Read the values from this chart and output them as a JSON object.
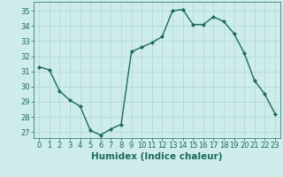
{
  "x": [
    0,
    1,
    2,
    3,
    4,
    5,
    6,
    7,
    8,
    9,
    10,
    11,
    12,
    13,
    14,
    15,
    16,
    17,
    18,
    19,
    20,
    21,
    22,
    23
  ],
  "y": [
    31.3,
    31.1,
    29.7,
    29.1,
    28.7,
    27.1,
    26.8,
    27.2,
    27.5,
    32.3,
    32.6,
    32.9,
    33.3,
    35.0,
    35.1,
    34.1,
    34.1,
    34.6,
    34.3,
    33.5,
    32.2,
    30.4,
    29.5,
    28.2
  ],
  "line_color": "#1a6b5e",
  "marker": "D",
  "marker_size": 2.0,
  "bg_color": "#ceecea",
  "grid_color": "#aed8d4",
  "xlabel": "Humidex (Indice chaleur)",
  "ylim": [
    26.6,
    35.6
  ],
  "xlim": [
    -0.5,
    23.5
  ],
  "yticks": [
    27,
    28,
    29,
    30,
    31,
    32,
    33,
    34,
    35
  ],
  "xticks": [
    0,
    1,
    2,
    3,
    4,
    5,
    6,
    7,
    8,
    9,
    10,
    11,
    12,
    13,
    14,
    15,
    16,
    17,
    18,
    19,
    20,
    21,
    22,
    23
  ],
  "tick_color": "#1a6b5e",
  "label_color": "#1a6b5e",
  "xlabel_fontsize": 7.5,
  "tick_fontsize": 6.0,
  "linewidth": 1.0
}
